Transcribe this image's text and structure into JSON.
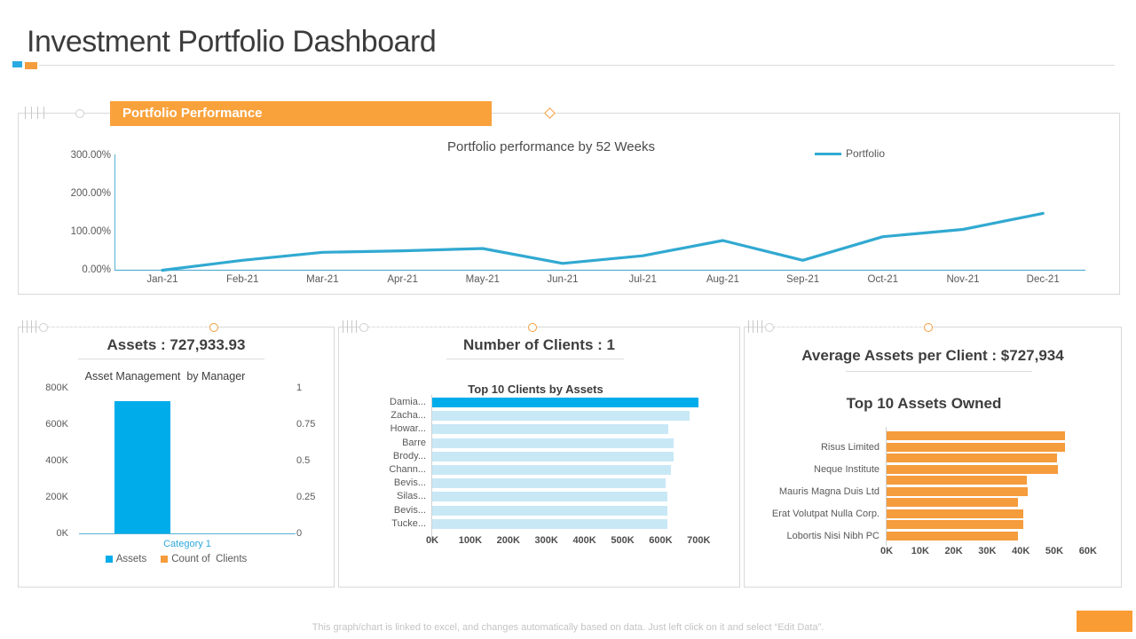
{
  "title": "Investment Portfolio Dashboard",
  "footer": "This graph/chart is linked to excel, and changes automatically based on data. Just left click on it and select “Edit Data”.",
  "colors": {
    "accent_blue": "#00ACEA",
    "accent_orange": "#F59C3C",
    "banner_orange": "#F9A23C",
    "light_blue": "#C8E8F6",
    "line_teal": "#31A9D1",
    "axis_line": "#56AFD3",
    "gray_axis": "#D0D0D0",
    "text_dark": "#3F3F3F",
    "text_gray": "#595959",
    "border": "#D9D9D9",
    "footer_text": "#C4C4C4"
  },
  "performance_panel": {
    "banner": "Portfolio Performance"
  },
  "assets_panel": {
    "heading": "Assets : 727,933.93"
  },
  "clients_panel": {
    "heading": "Number of Clients : 1"
  },
  "avg_assets_panel": {
    "heading": "Average Assets per Client : $727,934"
  },
  "chart_data": [
    {
      "id": "portfolio-line",
      "type": "line",
      "title": "Portfolio performance by 52 Weeks",
      "legend": [
        "Portfolio"
      ],
      "legend_position": "top-right",
      "grid": false,
      "x": [
        "Jan-21",
        "Feb-21",
        "Mar-21",
        "Apr-21",
        "May-21",
        "Jun-21",
        "Jul-21",
        "Aug-21",
        "Sep-21",
        "Oct-21",
        "Nov-21",
        "Dec-21"
      ],
      "values_pct": [
        0,
        26,
        47,
        51,
        57,
        18,
        38,
        78,
        26,
        88,
        107,
        149
      ],
      "ylim": [
        0,
        300
      ],
      "yticks": [
        "0.00%",
        "100.00%",
        "200.00%",
        "300.00%"
      ]
    },
    {
      "id": "asset-management-bar",
      "type": "bar",
      "title": "Asset Management  by Manager",
      "categories": [
        "Category 1"
      ],
      "series": [
        {
          "name": "Assets",
          "values": [
            727933.93
          ],
          "axis": "left"
        },
        {
          "name": "Count of  Clients",
          "values": [
            1
          ],
          "axis": "right"
        }
      ],
      "left_axis": {
        "ticks": [
          "800K",
          "600K",
          "400K",
          "200K",
          "0K"
        ],
        "max": 800000
      },
      "right_axis": {
        "ticks": [
          "1",
          "0.75",
          "0.5",
          "0.25",
          "0"
        ],
        "max": 1
      }
    },
    {
      "id": "top-clients-bar",
      "type": "bar",
      "orientation": "horizontal",
      "title": "Top 10 Clients by Assets",
      "categories": [
        "Damia...",
        "Zacha...",
        "Howar...",
        "Barre",
        "Brody...",
        "Chann...",
        "Bevis...",
        "Silas...",
        "Bevis...",
        "Tucke..."
      ],
      "values": [
        700000,
        676000,
        620000,
        633000,
        633000,
        628000,
        614000,
        617000,
        618000,
        618000
      ],
      "xlim": [
        0,
        700000
      ],
      "xticks": [
        "0K",
        "100K",
        "200K",
        "300K",
        "400K",
        "500K",
        "600K",
        "700K"
      ],
      "highlight_first": true
    },
    {
      "id": "top-assets-bar",
      "type": "bar",
      "orientation": "horizontal-grouped",
      "title": "Top 10 Assets Owned",
      "categories": [
        "Risus Limited",
        "Neque Institute",
        "Mauris Magna Duis Ltd",
        "Erat Volutpat Nulla Corp.",
        "Lobortis Nisi Nibh PC"
      ],
      "series_values": [
        [
          53200,
          53200
        ],
        [
          50800,
          51100
        ],
        [
          41800,
          42000
        ],
        [
          39100,
          40800
        ],
        [
          40800,
          39100
        ]
      ],
      "xlim": [
        0,
        60000
      ],
      "xticks": [
        "0K",
        "10K",
        "20K",
        "30K",
        "40K",
        "50K",
        "60K"
      ]
    }
  ]
}
